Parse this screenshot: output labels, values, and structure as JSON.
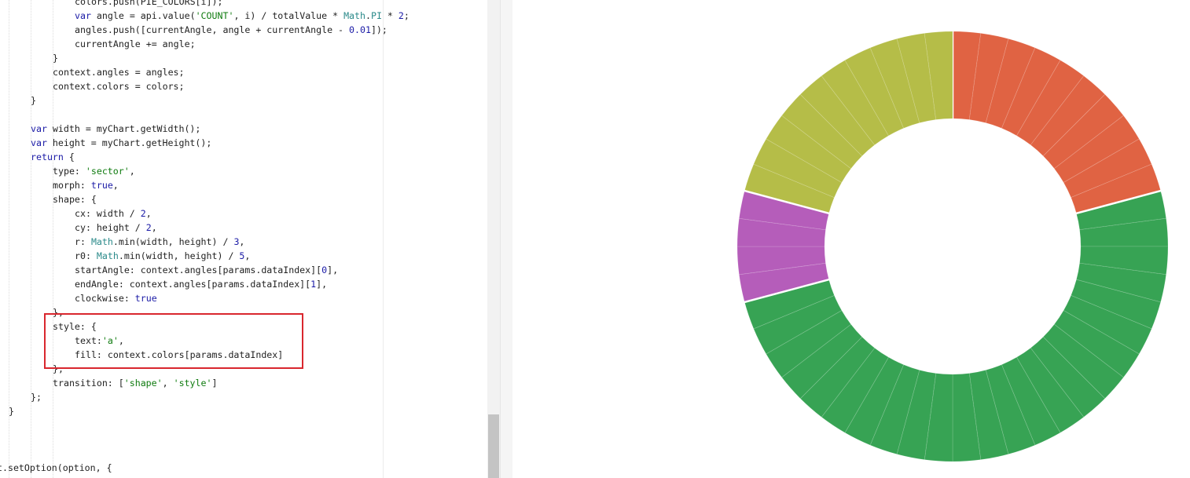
{
  "editor": {
    "lines": [
      {
        "indent": 3,
        "tokens": [
          [
            "colors.push(PIE_COLORS[i]);",
            ""
          ]
        ]
      },
      {
        "indent": 3,
        "tokens": [
          [
            "var",
            "kw"
          ],
          [
            " angle = api.value(",
            ""
          ],
          [
            "'COUNT'",
            "str"
          ],
          [
            ", i) / totalValue * ",
            ""
          ],
          [
            "Math",
            "prop"
          ],
          [
            ".",
            ""
          ],
          [
            "PI",
            "prop"
          ],
          [
            " * ",
            ""
          ],
          [
            "2",
            "num"
          ],
          [
            ";",
            ""
          ]
        ]
      },
      {
        "indent": 3,
        "tokens": [
          [
            "angles.push([currentAngle, angle + currentAngle - ",
            ""
          ],
          [
            "0.01",
            "num"
          ],
          [
            "]);",
            ""
          ]
        ]
      },
      {
        "indent": 3,
        "tokens": [
          [
            "currentAngle += angle;",
            ""
          ]
        ]
      },
      {
        "indent": 2,
        "tokens": [
          [
            "}",
            ""
          ]
        ]
      },
      {
        "indent": 2,
        "tokens": [
          [
            "context.angles = angles;",
            ""
          ]
        ]
      },
      {
        "indent": 2,
        "tokens": [
          [
            "context.colors = colors;",
            ""
          ]
        ]
      },
      {
        "indent": 1,
        "tokens": [
          [
            "}",
            ""
          ]
        ]
      },
      {
        "indent": 0,
        "tokens": []
      },
      {
        "indent": 1,
        "tokens": [
          [
            "var",
            "kw"
          ],
          [
            " width = myChart.getWidth();",
            ""
          ]
        ]
      },
      {
        "indent": 1,
        "tokens": [
          [
            "var",
            "kw"
          ],
          [
            " height = myChart.getHeight();",
            ""
          ]
        ]
      },
      {
        "indent": 1,
        "tokens": [
          [
            "return",
            "kw"
          ],
          [
            " {",
            ""
          ]
        ]
      },
      {
        "indent": 2,
        "tokens": [
          [
            "type: ",
            ""
          ],
          [
            "'sector'",
            "str"
          ],
          [
            ",",
            ""
          ]
        ]
      },
      {
        "indent": 2,
        "tokens": [
          [
            "morph: ",
            ""
          ],
          [
            "true",
            "kw"
          ],
          [
            ",",
            ""
          ]
        ]
      },
      {
        "indent": 2,
        "tokens": [
          [
            "shape: {",
            ""
          ]
        ]
      },
      {
        "indent": 3,
        "tokens": [
          [
            "cx: width / ",
            ""
          ],
          [
            "2",
            "num"
          ],
          [
            ",",
            ""
          ]
        ]
      },
      {
        "indent": 3,
        "tokens": [
          [
            "cy: height / ",
            ""
          ],
          [
            "2",
            "num"
          ],
          [
            ",",
            ""
          ]
        ]
      },
      {
        "indent": 3,
        "tokens": [
          [
            "r: ",
            ""
          ],
          [
            "Math",
            "prop"
          ],
          [
            ".min(width, height) / ",
            ""
          ],
          [
            "3",
            "num"
          ],
          [
            ",",
            ""
          ]
        ]
      },
      {
        "indent": 3,
        "tokens": [
          [
            "r0: ",
            ""
          ],
          [
            "Math",
            "prop"
          ],
          [
            ".min(width, height) / ",
            ""
          ],
          [
            "5",
            "num"
          ],
          [
            ",",
            ""
          ]
        ]
      },
      {
        "indent": 3,
        "tokens": [
          [
            "startAngle: context.angles[params.dataIndex][",
            ""
          ],
          [
            "0",
            "num"
          ],
          [
            "],",
            ""
          ]
        ]
      },
      {
        "indent": 3,
        "tokens": [
          [
            "endAngle: context.angles[params.dataIndex][",
            ""
          ],
          [
            "1",
            "num"
          ],
          [
            "],",
            ""
          ]
        ]
      },
      {
        "indent": 3,
        "tokens": [
          [
            "clockwise: ",
            ""
          ],
          [
            "true",
            "kw"
          ]
        ]
      },
      {
        "indent": 2,
        "tokens": [
          [
            "},",
            ""
          ]
        ]
      },
      {
        "indent": 2,
        "tokens": [
          [
            "style: {",
            ""
          ]
        ]
      },
      {
        "indent": 3,
        "tokens": [
          [
            "text:",
            ""
          ],
          [
            "'a'",
            "str"
          ],
          [
            ",",
            ""
          ]
        ]
      },
      {
        "indent": 3,
        "tokens": [
          [
            "fill: context.colors[params.dataIndex]",
            ""
          ]
        ]
      },
      {
        "indent": 2,
        "tokens": [
          [
            "},",
            ""
          ]
        ]
      },
      {
        "indent": 2,
        "tokens": [
          [
            "transition: [",
            ""
          ],
          [
            "'shape'",
            "str"
          ],
          [
            ", ",
            ""
          ],
          [
            "'style'",
            "str"
          ],
          [
            "]",
            ""
          ]
        ]
      },
      {
        "indent": 1,
        "tokens": [
          [
            "};",
            ""
          ]
        ]
      },
      {
        "indent": 0,
        "tokens": [
          [
            "}",
            ""
          ]
        ]
      },
      {
        "indent": 0,
        "tokens": []
      },
      {
        "indent": 0,
        "tokens": []
      },
      {
        "indent": 0,
        "tokens": []
      },
      {
        "indent": 0,
        "tokens": [
          [
            "t.setOption(option, {",
            ""
          ]
        ]
      }
    ]
  },
  "chart": {
    "groups": [
      {
        "name": "",
        "color": "#e06343",
        "slices": 10
      },
      {
        "name": "",
        "color": "#37a354",
        "slices": 24
      },
      {
        "name": "",
        "color": "#b55dba",
        "slices": 4
      },
      {
        "name": "",
        "color": "#b5bd48",
        "slices": 10
      }
    ]
  }
}
